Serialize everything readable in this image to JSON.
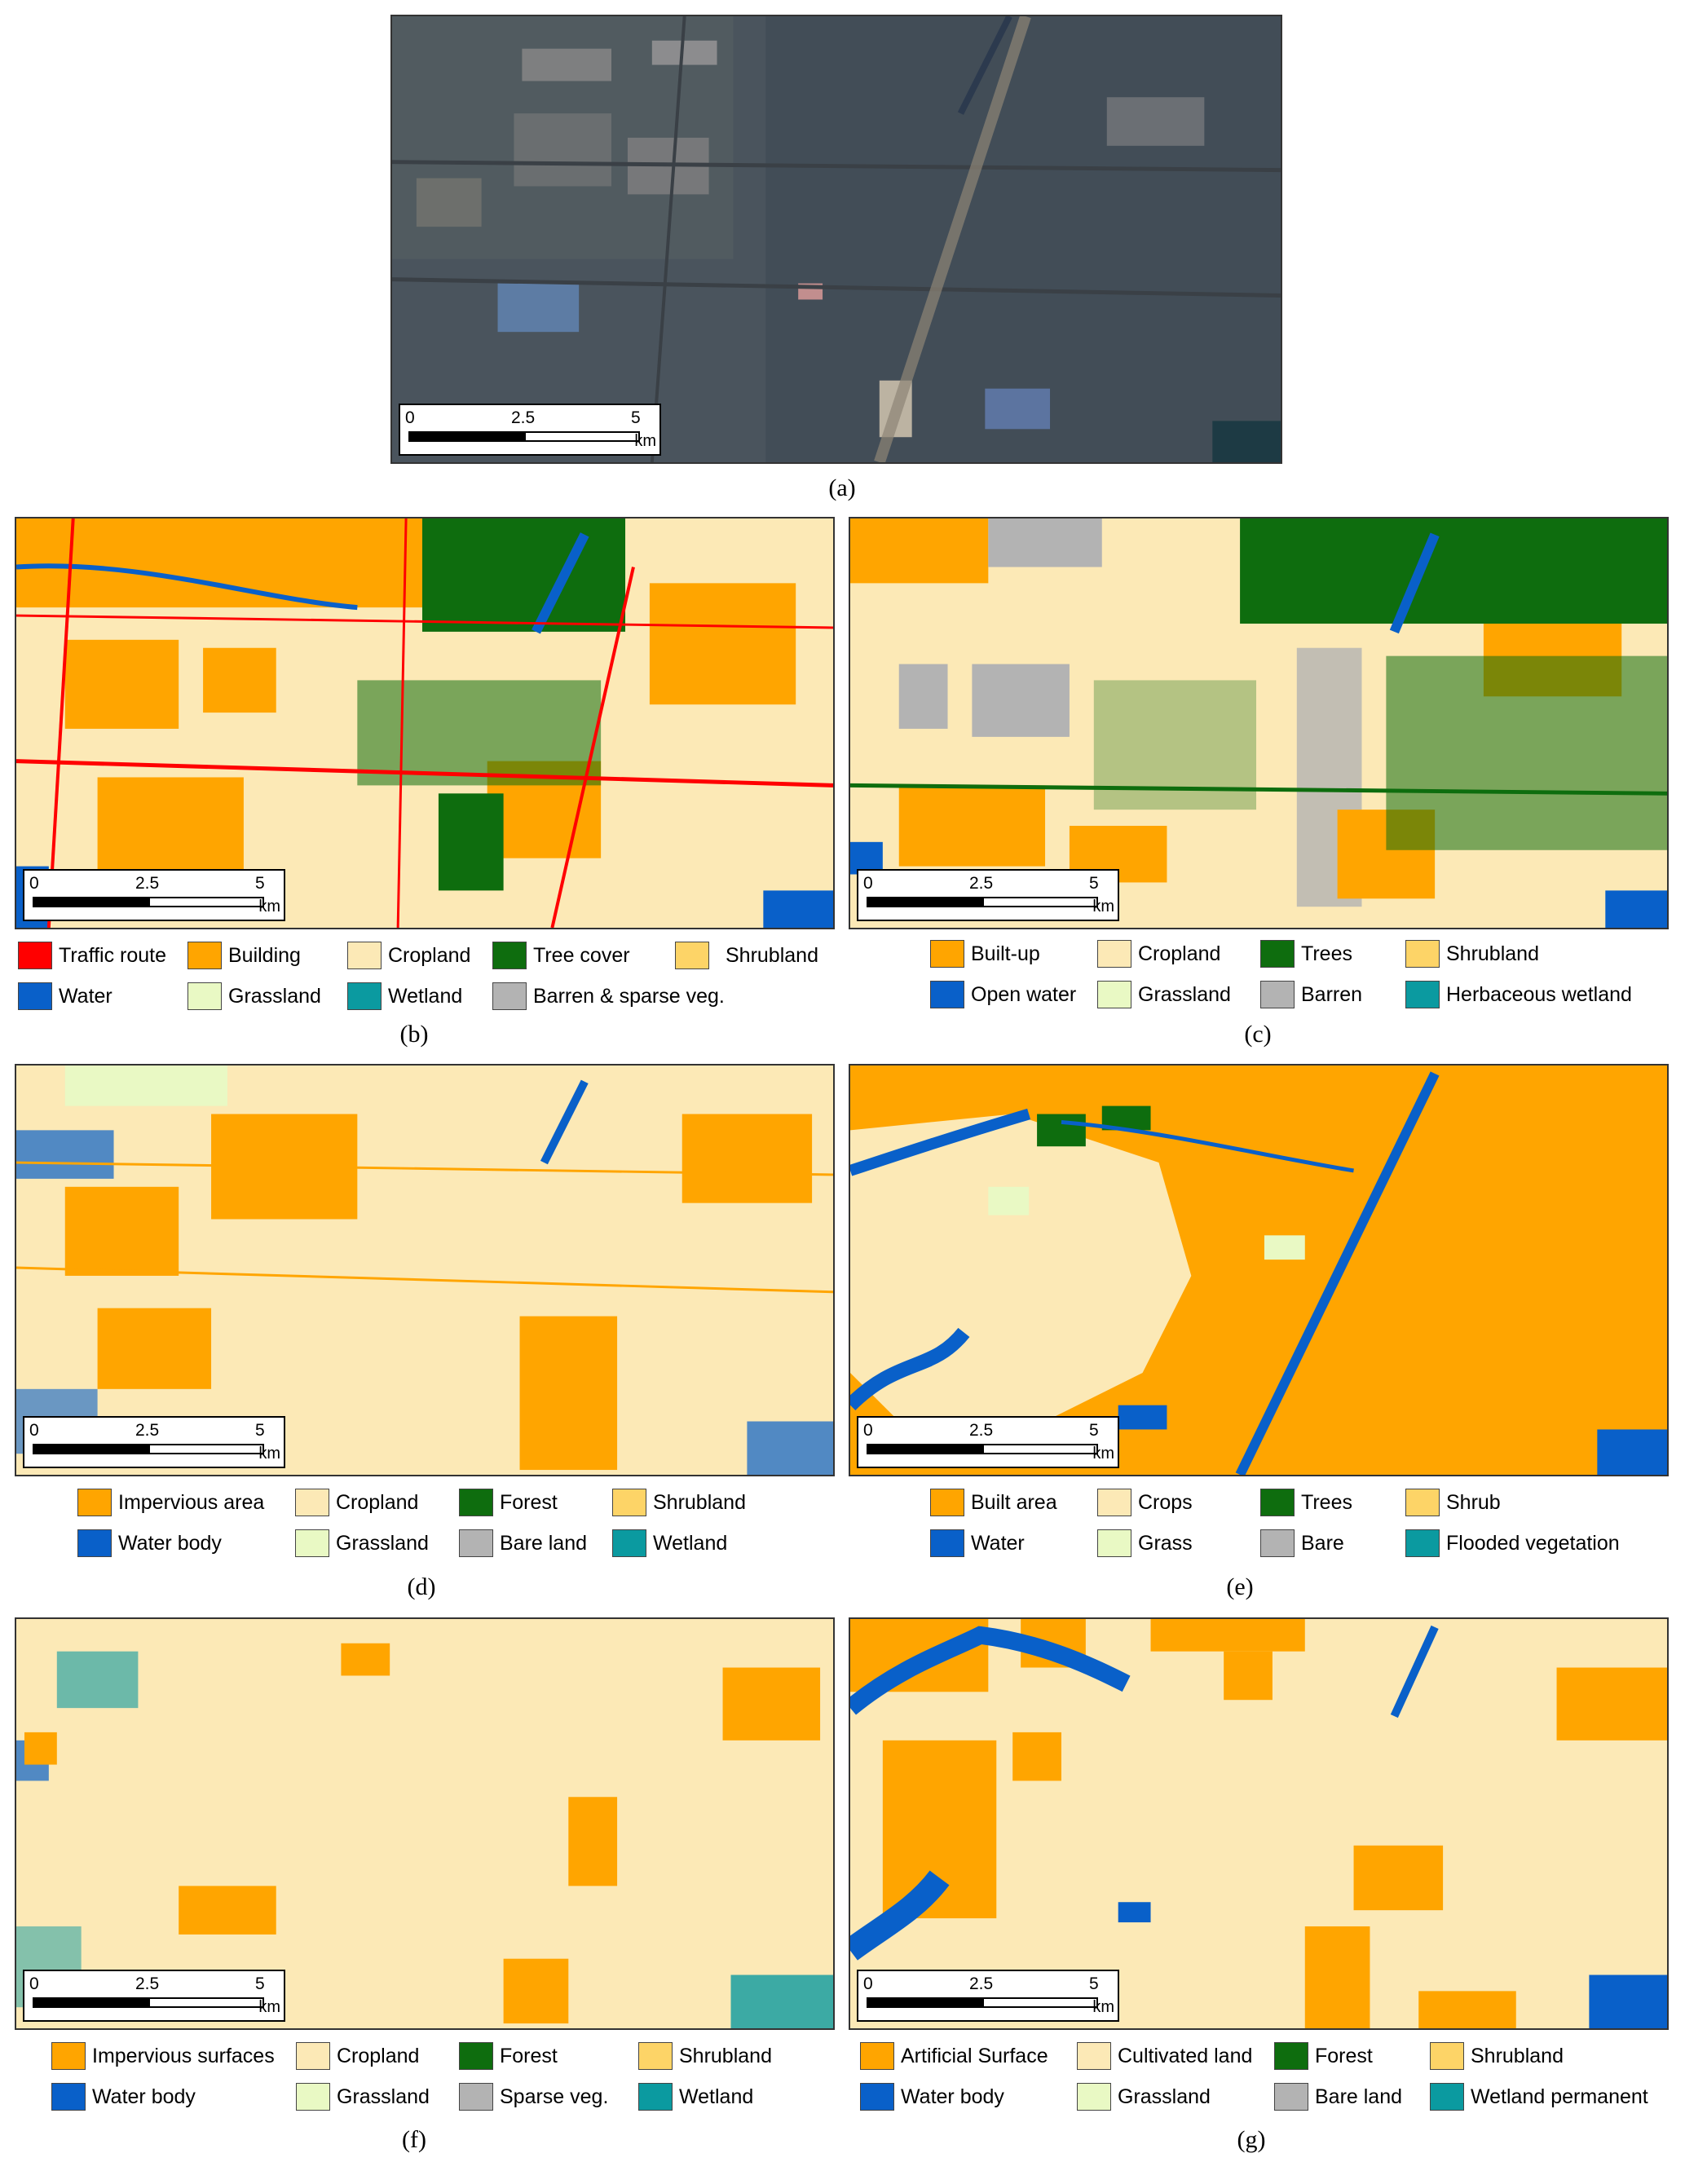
{
  "colors": {
    "traffic": "#ff0000",
    "built": "#ffa500",
    "crop": "#fce9b6",
    "tree": "#0e6d0e",
    "shrub": "#fdd467",
    "water": "#0960c9",
    "grass": "#e9f9c4",
    "wetland": "#0b9aa0",
    "barren": "#b3b3b3",
    "sat_base": "#4c5660"
  },
  "scalebar": {
    "tick0": "0",
    "tick1": "2.5",
    "tick2": "5",
    "unit": "km"
  },
  "panels": {
    "a": {
      "caption": "(a)"
    },
    "b": {
      "caption": "(b)",
      "legend": [
        {
          "label": "Traffic route",
          "color": "#ff0000"
        },
        {
          "label": "Building",
          "color": "#ffa500"
        },
        {
          "label": "Cropland",
          "color": "#fce9b6"
        },
        {
          "label": "Tree cover",
          "color": "#0e6d0e"
        },
        {
          "label": "Shrubland",
          "color": "#fdd467"
        },
        {
          "label": "Water",
          "color": "#0960c9"
        },
        {
          "label": "Grassland",
          "color": "#e9f9c4"
        },
        {
          "label": "Wetland",
          "color": "#0b9aa0"
        },
        {
          "label": "Barren & sparse veg.",
          "color": "#b3b3b3"
        }
      ]
    },
    "c": {
      "caption": "(c)",
      "legend": [
        {
          "label": "Built-up",
          "color": "#ffa500"
        },
        {
          "label": "Cropland",
          "color": "#fce9b6"
        },
        {
          "label": "Trees",
          "color": "#0e6d0e"
        },
        {
          "label": "Shrubland",
          "color": "#fdd467"
        },
        {
          "label": "Open water",
          "color": "#0960c9"
        },
        {
          "label": "Grassland",
          "color": "#e9f9c4"
        },
        {
          "label": "Barren",
          "color": "#b3b3b3"
        },
        {
          "label": "Herbaceous wetland",
          "color": "#0b9aa0"
        }
      ]
    },
    "d": {
      "caption": "(d)",
      "legend": [
        {
          "label": "Impervious area",
          "color": "#ffa500"
        },
        {
          "label": "Cropland",
          "color": "#fce9b6"
        },
        {
          "label": "Forest",
          "color": "#0e6d0e"
        },
        {
          "label": "Shrubland",
          "color": "#fdd467"
        },
        {
          "label": "Water body",
          "color": "#0960c9"
        },
        {
          "label": "Grassland",
          "color": "#e9f9c4"
        },
        {
          "label": "Bare land",
          "color": "#b3b3b3"
        },
        {
          "label": "Wetland",
          "color": "#0b9aa0"
        }
      ]
    },
    "e": {
      "caption": "(e)",
      "legend": [
        {
          "label": "Built area",
          "color": "#ffa500"
        },
        {
          "label": "Crops",
          "color": "#fce9b6"
        },
        {
          "label": "Trees",
          "color": "#0e6d0e"
        },
        {
          "label": "Shrub",
          "color": "#fdd467"
        },
        {
          "label": "Water",
          "color": "#0960c9"
        },
        {
          "label": "Grass",
          "color": "#e9f9c4"
        },
        {
          "label": "Bare",
          "color": "#b3b3b3"
        },
        {
          "label": "Flooded vegetation",
          "color": "#0b9aa0"
        }
      ]
    },
    "f": {
      "caption": "(f)",
      "legend": [
        {
          "label": "Impervious surfaces",
          "color": "#ffa500"
        },
        {
          "label": "Cropland",
          "color": "#fce9b6"
        },
        {
          "label": "Forest",
          "color": "#0e6d0e"
        },
        {
          "label": "Shrubland",
          "color": "#fdd467"
        },
        {
          "label": "Water body",
          "color": "#0960c9"
        },
        {
          "label": "Grassland",
          "color": "#e9f9c4"
        },
        {
          "label": "Sparse veg.",
          "color": "#b3b3b3"
        },
        {
          "label": "Wetland",
          "color": "#0b9aa0"
        }
      ]
    },
    "g": {
      "caption": "(g)",
      "legend": [
        {
          "label": "Artificial Surface",
          "color": "#ffa500"
        },
        {
          "label": "Cultivated land",
          "color": "#fce9b6"
        },
        {
          "label": "Forest",
          "color": "#0e6d0e"
        },
        {
          "label": "Shrubland",
          "color": "#fdd467"
        },
        {
          "label": "Water body",
          "color": "#0960c9"
        },
        {
          "label": "Grassland",
          "color": "#e9f9c4"
        },
        {
          "label": "Bare land",
          "color": "#b3b3b3"
        },
        {
          "label": "Wetland permanent",
          "color": "#0b9aa0"
        }
      ]
    }
  }
}
